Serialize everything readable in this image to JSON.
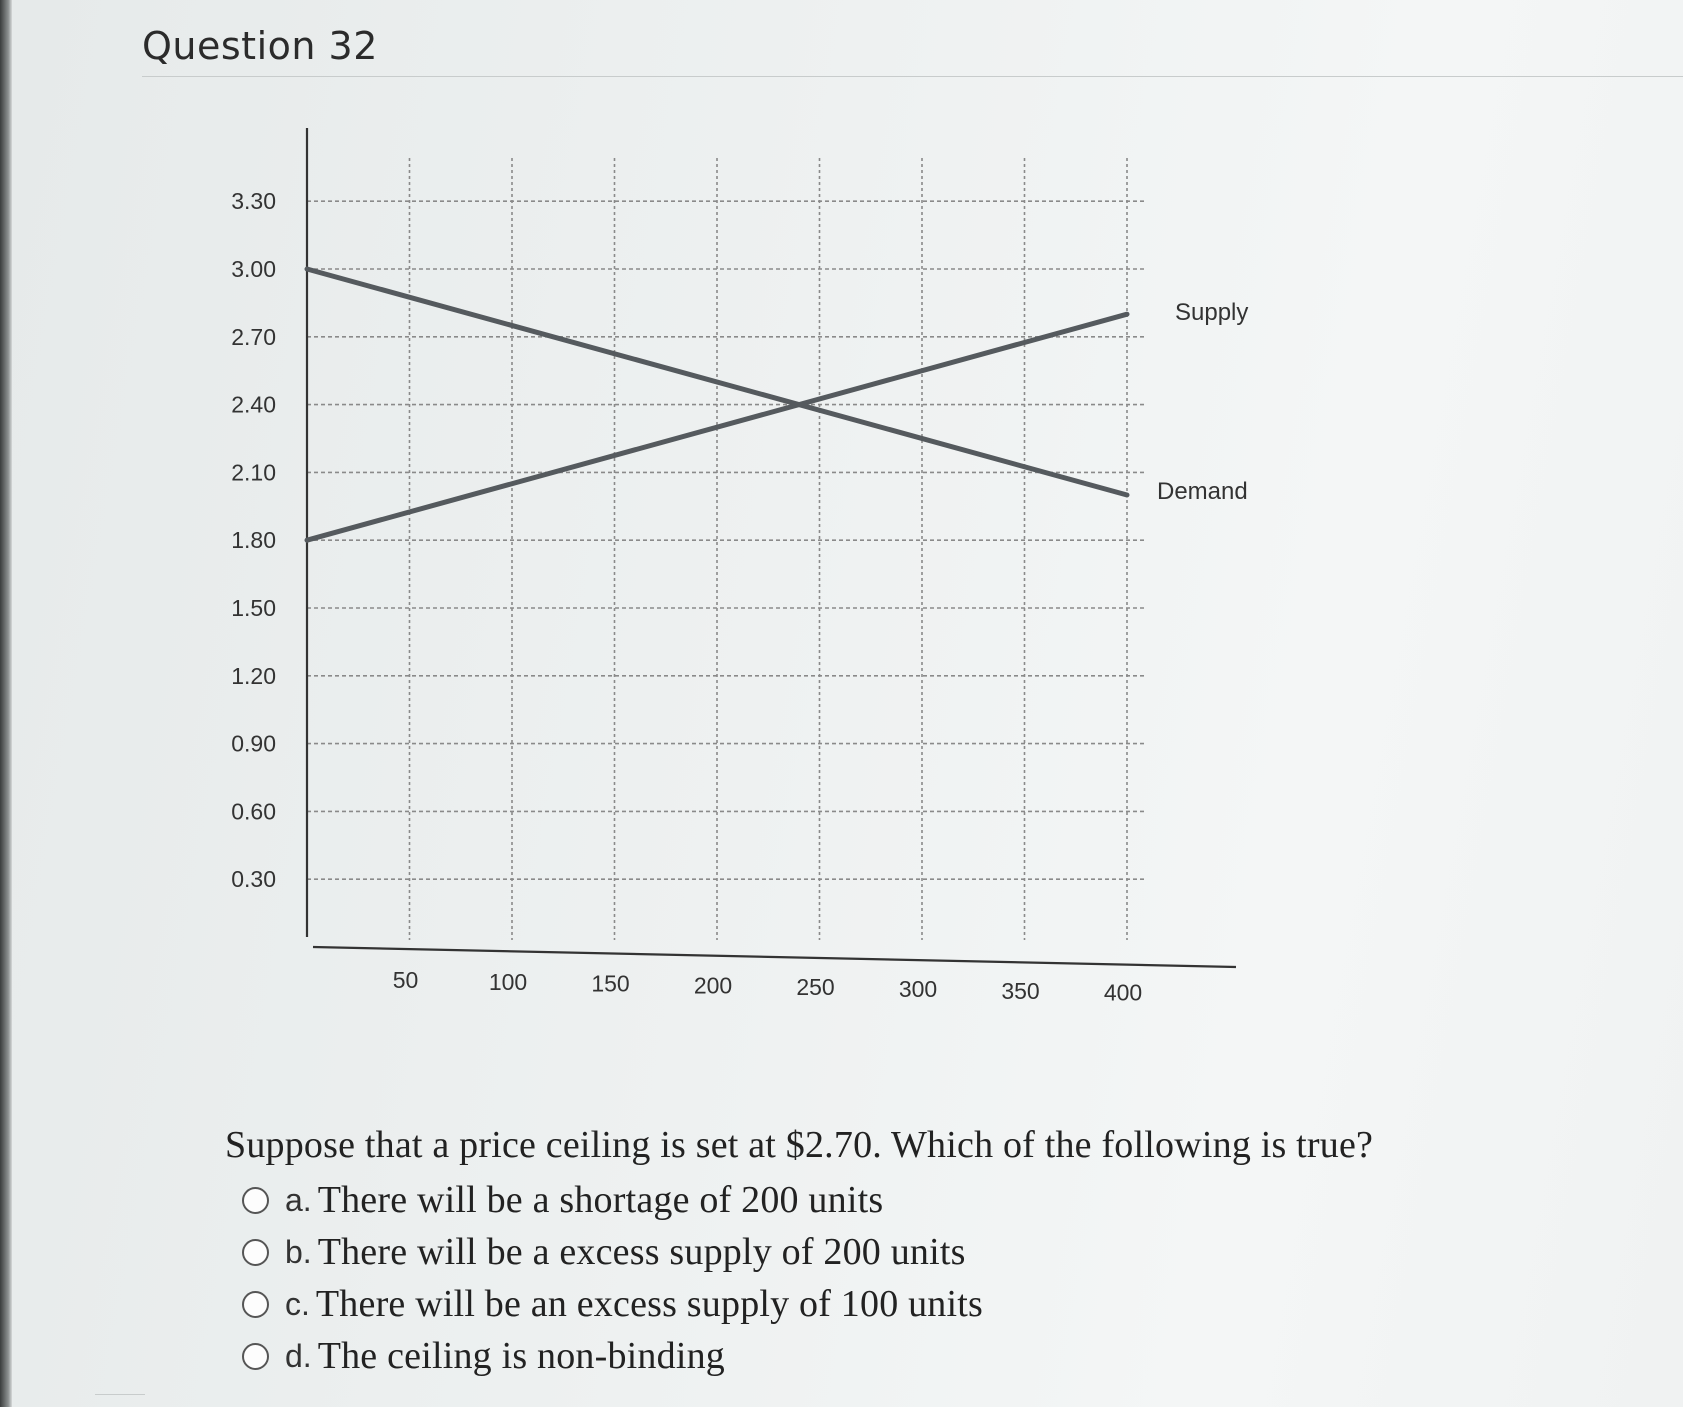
{
  "question": {
    "title": "Question 32",
    "prompt": "Suppose that a price ceiling is set at $2.70. Which of the following is true?",
    "options": [
      {
        "letter": "a.",
        "text": "There will be a shortage of 200 units"
      },
      {
        "letter": "b.",
        "text": "There will be a excess supply of 200 units"
      },
      {
        "letter": "c.",
        "text": "There will be an excess supply of 100 units"
      },
      {
        "letter": "d.",
        "text": "The ceiling is non-binding"
      }
    ]
  },
  "chart_data": {
    "type": "line",
    "title": "",
    "xlabel": "",
    "ylabel": "",
    "x_ticks": [
      50,
      100,
      150,
      200,
      250,
      300,
      350,
      400
    ],
    "x_tick_labels": [
      "50",
      "100",
      "150",
      "200",
      "250",
      "300",
      "350",
      "400"
    ],
    "y_ticks": [
      0.3,
      0.6,
      0.9,
      1.2,
      1.5,
      1.8,
      2.1,
      2.4,
      2.7,
      3.0,
      3.3
    ],
    "y_tick_labels": [
      "0.30",
      "0.60",
      "0.90",
      "1.20",
      "1.50",
      "1.80",
      "2.10",
      "2.40",
      "2.70",
      "3.00",
      "3.30"
    ],
    "xlim": [
      0,
      450
    ],
    "ylim": [
      0,
      3.3
    ],
    "grid": true,
    "series": [
      {
        "name": "Supply",
        "x": [
          0,
          400
        ],
        "y": [
          1.8,
          2.8
        ]
      },
      {
        "name": "Demand",
        "x": [
          0,
          400
        ],
        "y": [
          3.0,
          2.0
        ]
      }
    ],
    "line_color": "#555a5e",
    "grid_color": "#8a8a8a"
  }
}
